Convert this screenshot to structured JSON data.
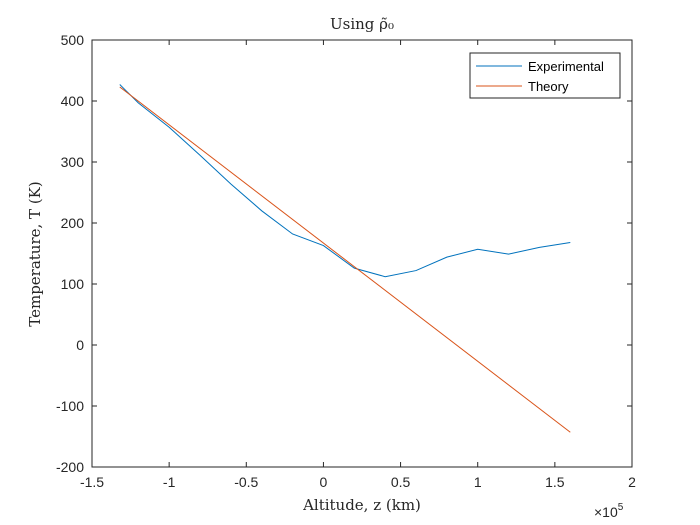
{
  "chart_data": {
    "type": "line",
    "title": "Using ρ̃₀",
    "xlabel": "Altitude, z (km)",
    "ylabel": "Temperature, T (K)",
    "x_exponent_label": "×10",
    "x_exponent_power": "5",
    "x_scale_factor": 100000,
    "xlim": [
      -150000,
      200000
    ],
    "ylim": [
      -200,
      500
    ],
    "x_ticks": [
      -150000,
      -100000,
      -50000,
      0,
      50000,
      100000,
      150000,
      200000
    ],
    "x_tick_labels": [
      "-1.5",
      "-1",
      "-0.5",
      "0",
      "0.5",
      "1",
      "1.5",
      "2"
    ],
    "y_ticks": [
      -200,
      -100,
      0,
      100,
      200,
      300,
      400,
      500
    ],
    "y_tick_labels": [
      "-200",
      "-100",
      "0",
      "100",
      "200",
      "300",
      "400",
      "500"
    ],
    "grid": false,
    "legend_position": "top-right",
    "series": [
      {
        "name": "Experimental",
        "color": "#0072BD",
        "x": [
          -132000,
          -120000,
          -100000,
          -80000,
          -60000,
          -40000,
          -20000,
          0,
          20000,
          40000,
          60000,
          80000,
          100000,
          120000,
          140000,
          160000
        ],
        "y": [
          427,
          397,
          357,
          311,
          264,
          220,
          182,
          163,
          126,
          112,
          122,
          144,
          157,
          149,
          160,
          168
        ]
      },
      {
        "name": "Theory",
        "color": "#D95319",
        "x": [
          -132000,
          160000
        ],
        "y": [
          423,
          -143
        ]
      }
    ]
  }
}
